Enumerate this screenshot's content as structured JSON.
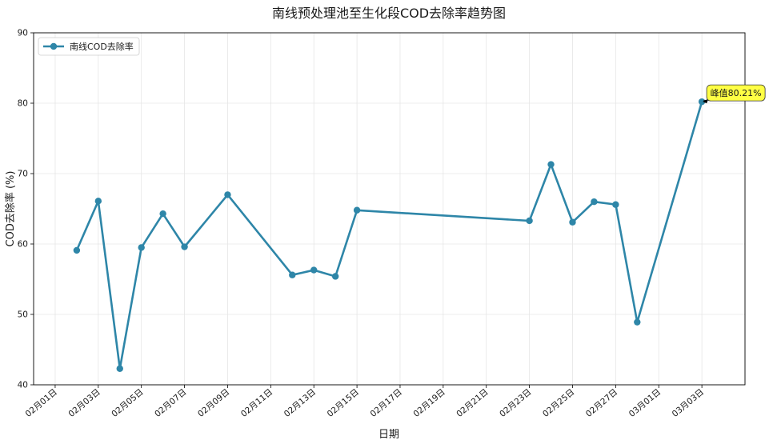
{
  "chart_data": {
    "type": "line",
    "title": "南线预处理池至生化段COD去除率趋势图",
    "xlabel": "日期",
    "ylabel": "COD去除率 (%)",
    "ylim": [
      40,
      90
    ],
    "yticks": [
      40,
      50,
      60,
      70,
      80,
      90
    ],
    "xlim": [
      "2025-01-31",
      "2025-03-05"
    ],
    "xtick_dates": [
      "2025-02-01",
      "2025-02-03",
      "2025-02-05",
      "2025-02-07",
      "2025-02-09",
      "2025-02-11",
      "2025-02-13",
      "2025-02-15",
      "2025-02-17",
      "2025-02-19",
      "2025-02-21",
      "2025-02-23",
      "2025-02-25",
      "2025-02-27",
      "2025-03-01",
      "2025-03-03"
    ],
    "xtick_labels": [
      "02月01日",
      "02月03日",
      "02月05日",
      "02月07日",
      "02月09日",
      "02月11日",
      "02月13日",
      "02月15日",
      "02月17日",
      "02月19日",
      "02月21日",
      "02月23日",
      "02月25日",
      "02月27日",
      "03月01日",
      "03月03日"
    ],
    "grid": true,
    "legend_position": "top-left",
    "series": [
      {
        "name": "南线COD去除率",
        "color": "#2e86a8",
        "x": [
          "2025-02-02",
          "2025-02-03",
          "2025-02-04",
          "2025-02-05",
          "2025-02-06",
          "2025-02-07",
          "2025-02-09",
          "2025-02-12",
          "2025-02-13",
          "2025-02-14",
          "2025-02-15",
          "2025-02-23",
          "2025-02-24",
          "2025-02-25",
          "2025-02-26",
          "2025-02-27",
          "2025-02-28",
          "2025-03-03"
        ],
        "values": [
          59.1,
          66.1,
          42.3,
          59.5,
          64.3,
          59.6,
          67.0,
          55.6,
          56.3,
          55.4,
          64.8,
          63.3,
          71.3,
          63.1,
          66.0,
          65.6,
          48.9,
          80.21
        ]
      }
    ],
    "annotation": {
      "text": "峰值80.21%",
      "x": "2025-03-03",
      "y": 80.21,
      "box_color": "#ffff44"
    }
  }
}
